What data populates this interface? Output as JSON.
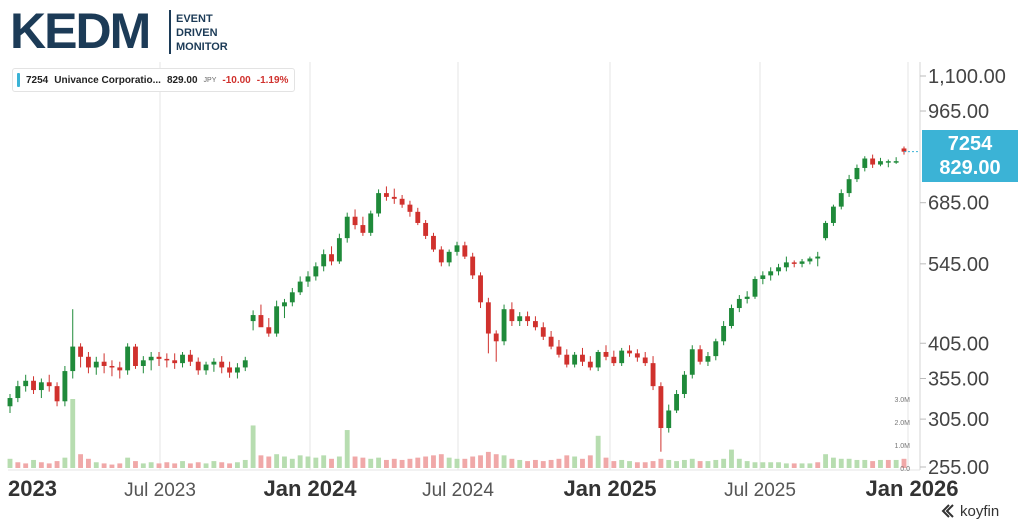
{
  "brand": {
    "logo_text": "KEDM",
    "logo_lines": [
      "EVENT",
      "DRIVEN",
      "MONITOR"
    ],
    "footer_logo": "koyfin"
  },
  "legend": {
    "symbol": "7254",
    "name": "Univance Corporatio...",
    "price": "829.00",
    "currency": "JPY",
    "change": "-10.00",
    "change_pct": "-1.19%"
  },
  "badge": {
    "symbol": "7254",
    "price": "829.00"
  },
  "colors": {
    "up": "#1f8a3a",
    "down": "#d0312d",
    "vol_up": "#b7ddb0",
    "vol_down": "#f0a8a8",
    "accent": "#3bb3d6",
    "grid": "#e6e6e6"
  },
  "chart_data": {
    "type": "candlestick",
    "title": "",
    "y_scale": "log",
    "ylim": [
      255,
      1100
    ],
    "y_ticks": [
      1100,
      965,
      685,
      545,
      405,
      355,
      305,
      255
    ],
    "y_tick_labels": [
      "1,100.00",
      "965.00",
      "685.00",
      "545.00",
      "405.00",
      "355.00",
      "305.00",
      "255.00"
    ],
    "x_ticks": [
      "2023",
      "Jul 2023",
      "Jan 2024",
      "Jul 2024",
      "Jan 2025",
      "Jul 2025",
      "Jan 2026"
    ],
    "x_ticks_bold": [
      true,
      false,
      true,
      false,
      true,
      false,
      true
    ],
    "volume_ticks": [
      "3.0M",
      "2.0M",
      "1.0M",
      "0.0"
    ],
    "grid": true,
    "last_price": 829.0,
    "series": [
      {
        "values": [
          [
            320,
            335,
            312,
            330
          ],
          [
            330,
            352,
            325,
            345
          ],
          [
            345,
            360,
            338,
            352
          ],
          [
            352,
            358,
            335,
            340
          ],
          [
            340,
            355,
            330,
            350
          ],
          [
            350,
            360,
            338,
            345
          ],
          [
            345,
            350,
            320,
            326
          ],
          [
            326,
            372,
            320,
            365
          ],
          [
            365,
            460,
            355,
            400
          ],
          [
            400,
            405,
            370,
            385
          ],
          [
            385,
            392,
            362,
            370
          ],
          [
            370,
            385,
            360,
            378
          ],
          [
            378,
            390,
            362,
            372
          ],
          [
            372,
            380,
            358,
            370
          ],
          [
            370,
            378,
            355,
            366
          ],
          [
            366,
            405,
            360,
            400
          ],
          [
            400,
            404,
            368,
            372
          ],
          [
            372,
            386,
            362,
            380
          ],
          [
            380,
            392,
            366,
            385
          ],
          [
            385,
            392,
            372,
            382
          ],
          [
            382,
            390,
            370,
            380
          ],
          [
            380,
            390,
            368,
            376
          ],
          [
            376,
            392,
            370,
            388
          ],
          [
            388,
            395,
            372,
            378
          ],
          [
            378,
            384,
            360,
            366
          ],
          [
            366,
            378,
            360,
            374
          ],
          [
            374,
            383,
            364,
            378
          ],
          [
            378,
            386,
            362,
            370
          ],
          [
            370,
            378,
            356,
            363
          ],
          [
            363,
            376,
            355,
            370
          ],
          [
            370,
            385,
            365,
            380
          ],
          [
            440,
            458,
            425,
            450
          ],
          [
            450,
            468,
            440,
            430
          ],
          [
            430,
            445,
            415,
            420
          ],
          [
            420,
            475,
            415,
            465
          ],
          [
            465,
            478,
            445,
            472
          ],
          [
            472,
            498,
            465,
            490
          ],
          [
            490,
            520,
            485,
            510
          ],
          [
            510,
            530,
            500,
            520
          ],
          [
            520,
            548,
            512,
            540
          ],
          [
            540,
            575,
            530,
            565
          ],
          [
            565,
            582,
            542,
            550
          ],
          [
            550,
            610,
            545,
            600
          ],
          [
            600,
            660,
            590,
            650
          ],
          [
            650,
            668,
            620,
            630
          ],
          [
            630,
            650,
            605,
            612
          ],
          [
            612,
            665,
            605,
            658
          ],
          [
            658,
            720,
            650,
            710
          ],
          [
            710,
            728,
            690,
            700
          ],
          [
            700,
            722,
            682,
            695
          ],
          [
            695,
            705,
            672,
            680
          ],
          [
            680,
            690,
            650,
            662
          ],
          [
            662,
            672,
            630,
            635
          ],
          [
            635,
            642,
            598,
            605
          ],
          [
            605,
            612,
            570,
            575
          ],
          [
            575,
            582,
            540,
            548
          ],
          [
            548,
            575,
            540,
            570
          ],
          [
            570,
            592,
            562,
            584
          ],
          [
            584,
            592,
            555,
            560
          ],
          [
            560,
            568,
            515,
            522
          ],
          [
            522,
            528,
            462,
            472
          ],
          [
            472,
            480,
            390,
            420
          ],
          [
            420,
            425,
            378,
            408
          ],
          [
            408,
            468,
            402,
            460
          ],
          [
            460,
            472,
            432,
            440
          ],
          [
            440,
            455,
            432,
            448
          ],
          [
            448,
            456,
            432,
            440
          ],
          [
            440,
            448,
            425,
            430
          ],
          [
            430,
            438,
            410,
            415
          ],
          [
            415,
            424,
            396,
            400
          ],
          [
            400,
            410,
            384,
            388
          ],
          [
            388,
            396,
            370,
            374
          ],
          [
            374,
            392,
            370,
            388
          ],
          [
            388,
            398,
            372,
            378
          ],
          [
            378,
            386,
            366,
            370
          ],
          [
            370,
            395,
            365,
            392
          ],
          [
            392,
            402,
            380,
            385
          ],
          [
            385,
            394,
            372,
            376
          ],
          [
            376,
            398,
            372,
            394
          ],
          [
            394,
            402,
            385,
            390
          ],
          [
            390,
            396,
            378,
            384
          ],
          [
            384,
            392,
            372,
            376
          ],
          [
            376,
            386,
            340,
            345
          ],
          [
            345,
            350,
            270,
            295
          ],
          [
            295,
            322,
            290,
            315
          ],
          [
            315,
            340,
            312,
            335
          ],
          [
            335,
            365,
            330,
            360
          ],
          [
            360,
            402,
            355,
            396
          ],
          [
            396,
            402,
            374,
            378
          ],
          [
            378,
            392,
            372,
            386
          ],
          [
            386,
            412,
            380,
            408
          ],
          [
            408,
            440,
            402,
            432
          ],
          [
            432,
            468,
            428,
            462
          ],
          [
            462,
            485,
            455,
            478
          ],
          [
            478,
            492,
            470,
            482
          ],
          [
            482,
            520,
            478,
            515
          ],
          [
            515,
            530,
            505,
            522
          ],
          [
            522,
            538,
            512,
            530
          ],
          [
            530,
            545,
            522,
            538
          ],
          [
            538,
            560,
            530,
            548
          ],
          [
            548,
            552,
            538,
            545
          ],
          [
            545,
            555,
            538,
            550
          ],
          [
            550,
            560,
            544,
            556
          ],
          [
            556,
            570,
            540,
            560
          ],
          [
            600,
            640,
            595,
            635
          ],
          [
            635,
            680,
            628,
            675
          ],
          [
            675,
            720,
            668,
            710
          ],
          [
            710,
            760,
            700,
            748
          ],
          [
            748,
            790,
            740,
            780
          ],
          [
            780,
            815,
            770,
            808
          ],
          [
            808,
            820,
            780,
            790
          ],
          [
            790,
            810,
            785,
            800
          ],
          [
            800,
            805,
            782,
            800
          ],
          [
            800,
            812,
            792,
            800
          ],
          [
            839,
            845,
            820,
            829
          ]
        ]
      }
    ],
    "volume": [
      [
        0.4,
        1
      ],
      [
        0.25,
        0
      ],
      [
        0.2,
        0
      ],
      [
        0.35,
        1
      ],
      [
        0.25,
        0
      ],
      [
        0.2,
        0
      ],
      [
        0.3,
        0
      ],
      [
        0.45,
        1
      ],
      [
        3.0,
        1
      ],
      [
        0.6,
        0
      ],
      [
        0.4,
        0
      ],
      [
        0.25,
        1
      ],
      [
        0.2,
        0
      ],
      [
        0.15,
        0
      ],
      [
        0.2,
        0
      ],
      [
        0.45,
        1
      ],
      [
        0.3,
        0
      ],
      [
        0.2,
        1
      ],
      [
        0.25,
        1
      ],
      [
        0.2,
        0
      ],
      [
        0.25,
        0
      ],
      [
        0.2,
        0
      ],
      [
        0.3,
        1
      ],
      [
        0.2,
        0
      ],
      [
        0.25,
        0
      ],
      [
        0.2,
        1
      ],
      [
        0.3,
        1
      ],
      [
        0.25,
        0
      ],
      [
        0.2,
        0
      ],
      [
        0.25,
        1
      ],
      [
        0.35,
        1
      ],
      [
        1.85,
        1
      ],
      [
        0.55,
        0
      ],
      [
        0.5,
        0
      ],
      [
        0.6,
        1
      ],
      [
        0.5,
        1
      ],
      [
        0.4,
        1
      ],
      [
        0.55,
        1
      ],
      [
        0.5,
        1
      ],
      [
        0.45,
        1
      ],
      [
        0.55,
        1
      ],
      [
        0.4,
        0
      ],
      [
        0.5,
        1
      ],
      [
        1.65,
        1
      ],
      [
        0.5,
        0
      ],
      [
        0.45,
        0
      ],
      [
        0.4,
        1
      ],
      [
        0.45,
        1
      ],
      [
        0.35,
        0
      ],
      [
        0.4,
        0
      ],
      [
        0.35,
        0
      ],
      [
        0.4,
        0
      ],
      [
        0.45,
        0
      ],
      [
        0.5,
        0
      ],
      [
        0.55,
        0
      ],
      [
        0.6,
        0
      ],
      [
        0.45,
        1
      ],
      [
        0.4,
        1
      ],
      [
        0.4,
        0
      ],
      [
        0.5,
        0
      ],
      [
        0.55,
        0
      ],
      [
        0.7,
        0
      ],
      [
        0.6,
        0
      ],
      [
        0.55,
        1
      ],
      [
        0.4,
        0
      ],
      [
        0.35,
        1
      ],
      [
        0.3,
        0
      ],
      [
        0.35,
        0
      ],
      [
        0.3,
        0
      ],
      [
        0.35,
        0
      ],
      [
        0.4,
        0
      ],
      [
        0.55,
        0
      ],
      [
        0.5,
        1
      ],
      [
        0.4,
        0
      ],
      [
        0.55,
        0
      ],
      [
        1.4,
        1
      ],
      [
        0.45,
        0
      ],
      [
        0.3,
        0
      ],
      [
        0.35,
        1
      ],
      [
        0.3,
        1
      ],
      [
        0.25,
        0
      ],
      [
        0.25,
        0
      ],
      [
        0.3,
        0
      ],
      [
        0.4,
        0
      ],
      [
        0.35,
        1
      ],
      [
        0.3,
        1
      ],
      [
        0.35,
        1
      ],
      [
        0.4,
        1
      ],
      [
        0.3,
        0
      ],
      [
        0.3,
        1
      ],
      [
        0.35,
        1
      ],
      [
        0.4,
        1
      ],
      [
        0.8,
        1
      ],
      [
        0.4,
        1
      ],
      [
        0.3,
        1
      ],
      [
        0.25,
        1
      ],
      [
        0.25,
        1
      ],
      [
        0.25,
        1
      ],
      [
        0.25,
        1
      ],
      [
        0.2,
        1
      ],
      [
        0.2,
        0
      ],
      [
        0.2,
        1
      ],
      [
        0.2,
        1
      ],
      [
        0.25,
        0
      ],
      [
        0.6,
        1
      ],
      [
        0.45,
        1
      ],
      [
        0.4,
        1
      ],
      [
        0.4,
        1
      ],
      [
        0.35,
        1
      ],
      [
        0.35,
        1
      ],
      [
        0.3,
        0
      ],
      [
        0.35,
        1
      ],
      [
        0.35,
        0
      ],
      [
        0.35,
        1
      ],
      [
        0.4,
        0
      ]
    ]
  }
}
